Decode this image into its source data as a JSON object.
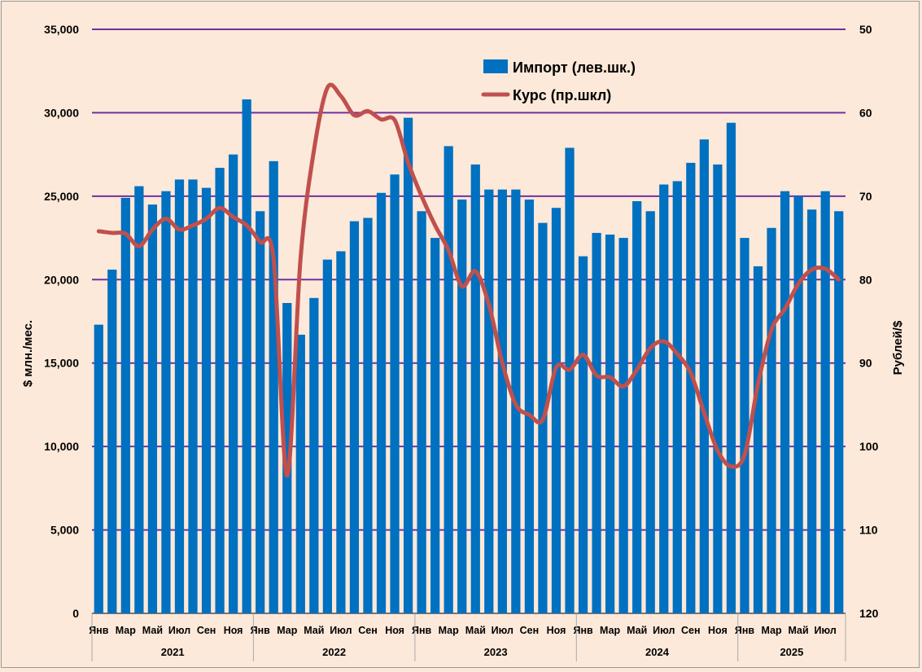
{
  "chart_data": {
    "type": "bar+line",
    "title": "",
    "ylabel_left": "$ млн./мес.",
    "ylabel_right": "Рублей/$",
    "ylim_left": [
      0,
      35000
    ],
    "ylim_right_inverted": [
      50,
      120
    ],
    "left_ticks": [
      "0",
      "5,000",
      "10,000",
      "15,000",
      "20,000",
      "25,000",
      "30,000",
      "35,000"
    ],
    "right_ticks": [
      "50",
      "60",
      "70",
      "80",
      "90",
      "100",
      "110",
      "120"
    ],
    "months_shown": [
      "Янв",
      "Мар",
      "Май",
      "Июл",
      "Сен",
      "Ноя"
    ],
    "years": [
      "2021",
      "2022",
      "2023",
      "2024",
      "2025"
    ],
    "legend": [
      "Импорт (лев.шк.)",
      "Курс (пр.шкл)"
    ],
    "colors": {
      "bar": "#0070c0",
      "line": "#c0504d",
      "grid": "#7030a0"
    },
    "series": [
      {
        "name": "Импорт (лев.шк.)",
        "type": "bar",
        "values": [
          17300,
          20600,
          24900,
          25600,
          24500,
          25300,
          26000,
          26000,
          25500,
          26700,
          27500,
          30800,
          24100,
          27100,
          18600,
          16700,
          18900,
          21200,
          21700,
          23500,
          23700,
          25200,
          26300,
          29700,
          24100,
          22500,
          28000,
          24800,
          26900,
          25400,
          25400,
          25400,
          24800,
          23400,
          24300,
          27900,
          21400,
          22800,
          22700,
          22500,
          24700,
          24100,
          25700,
          25900,
          27000,
          28400,
          26900,
          29400,
          22500,
          20800,
          23100,
          25300,
          25000,
          24200,
          25300,
          24100
        ]
      },
      {
        "name": "Курс (пр.шкл)",
        "type": "line",
        "values": [
          74.2,
          74.4,
          74.5,
          76.0,
          74.0,
          72.7,
          74.0,
          73.5,
          72.7,
          71.4,
          72.5,
          73.5,
          75.5,
          77.5,
          103.5,
          77.5,
          64.5,
          57.0,
          58.0,
          60.3,
          59.8,
          60.8,
          60.9,
          66.0,
          70.0,
          73.5,
          76.5,
          80.8,
          79.0,
          83.0,
          90.0,
          95.0,
          96.2,
          96.8,
          90.5,
          90.8,
          89.0,
          91.5,
          91.7,
          92.8,
          90.8,
          88.2,
          87.4,
          88.9,
          91.2,
          96.0,
          100.5,
          102.4,
          101.0,
          92.5,
          86.0,
          83.5,
          80.5,
          78.8,
          78.7,
          80.0
        ]
      }
    ]
  }
}
